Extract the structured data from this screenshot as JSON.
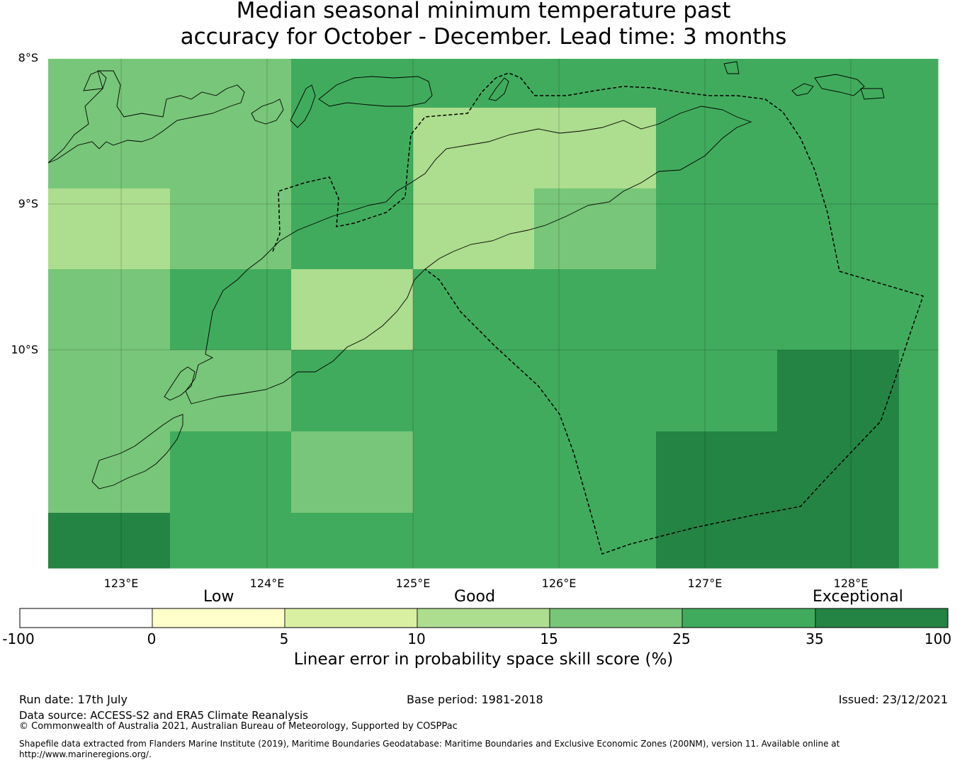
{
  "title": {
    "line1": "Median seasonal minimum temperature past",
    "line2": "accuracy for October - December. Lead time: 3 months"
  },
  "map": {
    "lat_labels": [
      "8°S",
      "9°S",
      "10°S"
    ],
    "lon_labels": [
      "123°E",
      "124°E",
      "125°E",
      "126°E",
      "127°E",
      "128°E"
    ],
    "colors": {
      "cat_0_5": "#ffffcc",
      "cat_5_10": "#d9f0a3",
      "cat_10_15": "#addd8e",
      "cat_15_25": "#78c679",
      "cat_25_35": "#41ab5d",
      "cat_35_100": "#238443"
    },
    "grid_note": "Skill category per grid cell, rows north→south, columns west→east",
    "cells": [
      [
        "15-25",
        "15-25",
        "25-35",
        "25-35",
        "25-35",
        "25-35",
        "25-35",
        "25-35"
      ],
      [
        "15-25",
        "15-25",
        "25-35",
        "10-15",
        "10-15",
        "25-35",
        "25-35",
        "25-35"
      ],
      [
        "10-15",
        "15-25",
        "25-35",
        "10-15",
        "15-25",
        "25-35",
        "25-35",
        "25-35"
      ],
      [
        "15-25",
        "25-35",
        "10-15",
        "25-35",
        "25-35",
        "25-35",
        "25-35",
        "25-35"
      ],
      [
        "15-25",
        "15-25",
        "25-35",
        "25-35",
        "25-35",
        "25-35",
        "35-100",
        "25-35"
      ],
      [
        "15-25",
        "25-35",
        "15-25",
        "25-35",
        "25-35",
        "35-100",
        "35-100",
        "25-35"
      ],
      [
        "35-100",
        "25-35",
        "25-35",
        "25-35",
        "25-35",
        "35-100",
        "35-100",
        "25-35"
      ]
    ]
  },
  "colorbar": {
    "categories": [
      "Low",
      "Good",
      "Exceptional"
    ],
    "ticks": [
      "-100",
      "0",
      "5",
      "10",
      "15",
      "25",
      "35",
      "100"
    ],
    "colors": [
      "#ffffff",
      "#ffffcc",
      "#d9f0a3",
      "#addd8e",
      "#78c679",
      "#41ab5d",
      "#238443"
    ],
    "label": "Linear error in probability space skill score (%)"
  },
  "footer": {
    "run_date": "Run date: 17th July",
    "base_period": "Base period: 1981-2018",
    "issued": "Issued: 23/12/2021",
    "data_source": "Data source: ACCESS-S2 and ERA5 Climate Reanalysis",
    "copyright": "© Commonwealth of Australia 2021, Australian Bureau of Meteorology, Supported by COSPPac",
    "shapefile_line1": "Shapefile data extracted from Flanders Marine Institute (2019), Maritime Boundaries Geodatabase: Maritime Boundaries and Exclusive Economic Zones (200NM), version 11. Available online at",
    "shapefile_line2": "http://www.marineregions.org/."
  }
}
